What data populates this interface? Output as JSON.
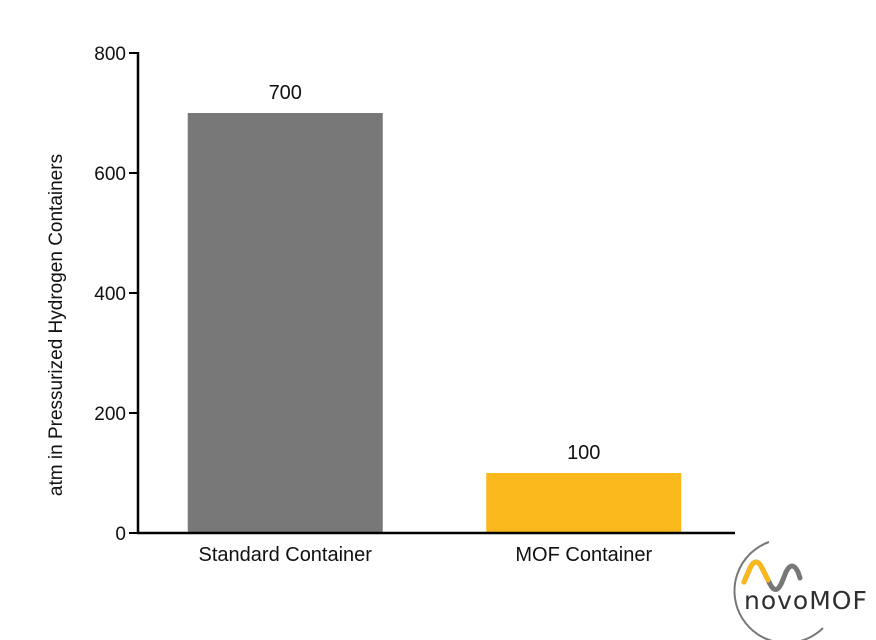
{
  "chart_data": {
    "type": "bar",
    "title": "",
    "xlabel": "",
    "ylabel": "atm in Pressurized Hydrogen Containers",
    "categories": [
      "Standard Container",
      "MOF Container"
    ],
    "values": [
      700,
      100
    ],
    "data_labels": [
      "700",
      "100"
    ],
    "bar_colors": [
      "#787878",
      "#fbb81c"
    ],
    "ylim": [
      0,
      800
    ],
    "yticks": [
      0,
      200,
      400,
      600,
      800
    ],
    "grid": false,
    "legend": "none"
  },
  "logo": {
    "text": "novoMOF",
    "accent_color": "#fbb81c",
    "ring_color": "#777777"
  }
}
